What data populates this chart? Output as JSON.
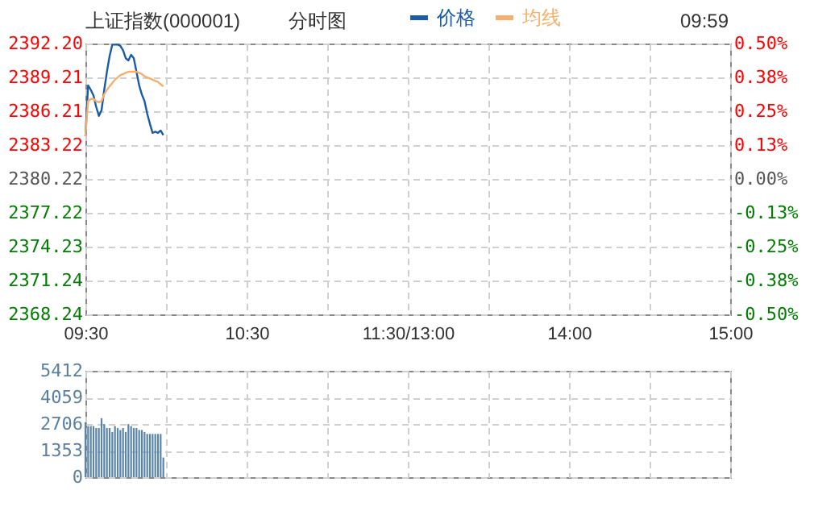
{
  "chart_data": [
    {
      "type": "line",
      "title": "上证指数(000001)",
      "annotations": [
        "分时图",
        "09:59"
      ],
      "legend": "top",
      "grid": true,
      "categories": [
        "09:30",
        null,
        null,
        null,
        null,
        null,
        null,
        null,
        null,
        null,
        null,
        null,
        null,
        null,
        null,
        null,
        null,
        null,
        null,
        null,
        null,
        null,
        null,
        null,
        null,
        null,
        null,
        null,
        null,
        null,
        null,
        null,
        null,
        null,
        null,
        null,
        null,
        null,
        null,
        null,
        null,
        null,
        null,
        null,
        null,
        null,
        null,
        null,
        null,
        null,
        null,
        null,
        null,
        null,
        null,
        null,
        null,
        null,
        null,
        null,
        "10:30",
        null,
        null,
        null,
        null,
        null,
        null,
        null,
        null,
        null,
        null,
        null,
        null,
        null,
        null,
        null,
        null,
        null,
        null,
        null,
        null,
        null,
        null,
        null,
        null,
        null,
        null,
        null,
        null,
        null,
        null,
        null,
        null,
        null,
        null,
        null,
        null,
        null,
        null,
        null,
        null,
        null,
        null,
        null,
        null,
        null,
        null,
        null,
        null,
        null,
        null,
        null,
        null,
        null,
        null,
        null,
        null,
        null,
        null,
        null,
        "11:30/13:00",
        null,
        null,
        null,
        null,
        null,
        null,
        null,
        null,
        null,
        null,
        null,
        null,
        null,
        null,
        null,
        null,
        null,
        null,
        null,
        null,
        null,
        null,
        null,
        null,
        null,
        null,
        null,
        null,
        null,
        null,
        null,
        null,
        null,
        null,
        null,
        null,
        null,
        null,
        null,
        null,
        null,
        null,
        null,
        null,
        null,
        null,
        null,
        null,
        null,
        null,
        null,
        null,
        null,
        null,
        null,
        null,
        null,
        null,
        null,
        "14:00",
        null,
        null,
        null,
        null,
        null,
        null,
        null,
        null,
        null,
        null,
        null,
        null,
        null,
        null,
        null,
        null,
        null,
        null,
        null,
        null,
        null,
        null,
        null,
        null,
        null,
        null,
        null,
        null,
        null,
        null,
        null,
        null,
        null,
        null,
        null,
        null,
        null,
        null,
        null,
        null,
        null,
        null,
        null,
        null,
        null,
        null,
        null,
        null,
        null,
        null,
        null,
        null,
        null,
        null,
        null,
        null,
        null,
        null,
        null,
        "15:00"
      ],
      "ylim": [
        2368.24,
        2392.2
      ],
      "yticks": [
        {
          "value": 2368.24,
          "label": "2368.24"
        },
        {
          "value": 2371.24,
          "label": "2371.24"
        },
        {
          "value": 2374.23,
          "label": "2374.23"
        },
        {
          "value": 2377.22,
          "label": "2377.22"
        },
        {
          "value": 2380.22,
          "label": "2380.22"
        },
        {
          "value": 2383.22,
          "label": "2383.22"
        },
        {
          "value": 2386.21,
          "label": "2386.21"
        },
        {
          "value": 2389.21,
          "label": "2389.21"
        },
        {
          "value": 2392.2,
          "label": "2392.20"
        }
      ],
      "y2lim": [
        -0.5,
        0.5
      ],
      "y2ticks": [
        {
          "value": -0.5,
          "label": "-0.50%"
        },
        {
          "value": -0.375,
          "label": "-0.38%"
        },
        {
          "value": -0.25,
          "label": "-0.25%"
        },
        {
          "value": -0.125,
          "label": "-0.13%"
        },
        {
          "value": 0,
          "label": "0.00%"
        },
        {
          "value": 0.125,
          "label": "0.13%"
        },
        {
          "value": 0.25,
          "label": "0.25%"
        },
        {
          "value": 0.375,
          "label": "0.38%"
        },
        {
          "value": 0.5,
          "label": "0.50%"
        }
      ],
      "series": [
        {
          "name": "价格",
          "color": "#1a5ca8",
          "values": [
            2384.0,
            2388.5,
            2388.1,
            2387.6,
            2386.6,
            2385.8,
            2386.3,
            2388.1,
            2389.7,
            2391.1,
            2392.1,
            2392.1,
            2392.1,
            2392.0,
            2391.6,
            2390.9,
            2390.7,
            2391.2,
            2390.9,
            2389.7,
            2388.5,
            2387.7,
            2387.1,
            2386.0,
            2385.1,
            2384.3,
            2384.4,
            2384.3,
            2384.5,
            2384.1,
            null,
            null,
            null,
            null,
            null,
            null,
            null,
            null,
            null,
            null,
            null,
            null,
            null,
            null,
            null,
            null,
            null,
            null,
            null,
            null,
            null,
            null,
            null,
            null,
            null,
            null,
            null,
            null,
            null,
            null,
            null,
            null,
            null,
            null,
            null,
            null,
            null,
            null,
            null,
            null,
            null,
            null,
            null,
            null,
            null,
            null,
            null,
            null,
            null,
            null,
            null,
            null,
            null,
            null,
            null,
            null,
            null,
            null,
            null,
            null,
            null,
            null,
            null,
            null,
            null,
            null,
            null,
            null,
            null,
            null,
            null,
            null,
            null,
            null,
            null,
            null,
            null,
            null,
            null,
            null,
            null,
            null,
            null,
            null,
            null,
            null,
            null,
            null,
            null,
            null,
            null,
            null,
            null,
            null,
            null,
            null,
            null,
            null,
            null,
            null,
            null,
            null,
            null,
            null,
            null,
            null,
            null,
            null,
            null,
            null,
            null,
            null,
            null,
            null,
            null,
            null,
            null,
            null,
            null,
            null,
            null,
            null,
            null,
            null,
            null,
            null,
            null,
            null,
            null,
            null,
            null,
            null,
            null,
            null,
            null,
            null,
            null,
            null,
            null,
            null,
            null,
            null,
            null,
            null,
            null,
            null,
            null,
            null,
            null,
            null,
            null,
            null,
            null,
            null,
            null,
            null,
            null,
            null,
            null,
            null,
            null,
            null,
            null,
            null,
            null,
            null,
            null,
            null,
            null,
            null,
            null,
            null,
            null,
            null,
            null,
            null,
            null,
            null,
            null,
            null,
            null,
            null,
            null,
            null,
            null,
            null,
            null,
            null,
            null,
            null,
            null,
            null,
            null,
            null,
            null,
            null,
            null,
            null,
            null,
            null,
            null,
            null,
            null,
            null,
            null,
            null,
            null,
            null,
            null,
            null,
            null
          ]
        },
        {
          "name": "均线",
          "color": "#f5b06b",
          "values": [
            2384.0,
            2387.1,
            2387.3,
            2387.3,
            2387.1,
            2387.0,
            2387.1,
            2387.7,
            2388.1,
            2388.4,
            2388.7,
            2389.0,
            2389.2,
            2389.4,
            2389.5,
            2389.6,
            2389.7,
            2389.7,
            2389.7,
            2389.7,
            2389.6,
            2389.5,
            2389.3,
            2389.2,
            2389.1,
            2389.0,
            2388.9,
            2388.8,
            2388.6,
            2388.4,
            null,
            null,
            null,
            null,
            null,
            null,
            null,
            null,
            null,
            null,
            null,
            null,
            null,
            null,
            null,
            null,
            null,
            null,
            null,
            null,
            null,
            null,
            null,
            null,
            null,
            null,
            null,
            null,
            null,
            null,
            null,
            null,
            null,
            null,
            null,
            null,
            null,
            null,
            null,
            null,
            null,
            null,
            null,
            null,
            null,
            null,
            null,
            null,
            null,
            null,
            null,
            null,
            null,
            null,
            null,
            null,
            null,
            null,
            null,
            null,
            null,
            null,
            null,
            null,
            null,
            null,
            null,
            null,
            null,
            null,
            null,
            null,
            null,
            null,
            null,
            null,
            null,
            null,
            null,
            null,
            null,
            null,
            null,
            null,
            null,
            null,
            null,
            null,
            null,
            null,
            null,
            null,
            null,
            null,
            null,
            null,
            null,
            null,
            null,
            null,
            null,
            null,
            null,
            null,
            null,
            null,
            null,
            null,
            null,
            null,
            null,
            null,
            null,
            null,
            null,
            null,
            null,
            null,
            null,
            null,
            null,
            null,
            null,
            null,
            null,
            null,
            null,
            null,
            null,
            null,
            null,
            null,
            null,
            null,
            null,
            null,
            null,
            null,
            null,
            null,
            null,
            null,
            null,
            null,
            null,
            null,
            null,
            null,
            null,
            null,
            null,
            null,
            null,
            null,
            null,
            null,
            null,
            null,
            null,
            null,
            null,
            null,
            null,
            null,
            null,
            null,
            null,
            null,
            null,
            null,
            null,
            null,
            null,
            null,
            null,
            null,
            null,
            null,
            null,
            null,
            null,
            null,
            null,
            null,
            null,
            null,
            null,
            null,
            null,
            null,
            null,
            null,
            null,
            null,
            null,
            null,
            null,
            null,
            null,
            null,
            null,
            null,
            null,
            null,
            null,
            null,
            null,
            null,
            null,
            null,
            null
          ]
        }
      ]
    },
    {
      "type": "bar",
      "grid": true,
      "tick_labels": "y",
      "color": "#5a84a8",
      "categories": [
        null,
        null,
        null,
        null,
        null,
        null,
        null,
        null,
        null,
        null,
        null,
        null,
        null,
        null,
        null,
        null,
        null,
        null,
        null,
        null,
        null,
        null,
        null,
        null,
        null,
        null,
        null,
        null,
        null,
        null,
        null,
        null,
        null,
        null,
        null,
        null,
        null,
        null,
        null,
        null,
        null,
        null,
        null,
        null,
        null,
        null,
        null,
        null,
        null,
        null,
        null,
        null,
        null,
        null,
        null,
        null,
        null,
        null,
        null,
        null,
        null,
        null,
        null,
        null,
        null,
        null,
        null,
        null,
        null,
        null,
        null,
        null,
        null,
        null,
        null,
        null,
        null,
        null,
        null,
        null,
        null,
        null,
        null,
        null,
        null,
        null,
        null,
        null,
        null,
        null,
        null,
        null,
        null,
        null,
        null,
        null,
        null,
        null,
        null,
        null,
        null,
        null,
        null,
        null,
        null,
        null,
        null,
        null,
        null,
        null,
        null,
        null,
        null,
        null,
        null,
        null,
        null,
        null,
        null,
        null,
        null,
        null,
        null,
        null,
        null,
        null,
        null,
        null,
        null,
        null,
        null,
        null,
        null,
        null,
        null,
        null,
        null,
        null,
        null,
        null,
        null,
        null,
        null,
        null,
        null,
        null,
        null,
        null,
        null,
        null,
        null,
        null,
        null,
        null,
        null,
        null,
        null,
        null,
        null,
        null,
        null,
        null,
        null,
        null,
        null,
        null,
        null,
        null,
        null,
        null,
        null,
        null,
        null,
        null,
        null,
        null,
        null,
        null,
        null,
        null,
        null,
        null,
        null,
        null,
        null,
        null,
        null,
        null,
        null,
        null,
        null,
        null,
        null,
        null,
        null,
        null,
        null,
        null,
        null,
        null,
        null,
        null,
        null,
        null,
        null,
        null,
        null,
        null,
        null,
        null,
        null,
        null,
        null,
        null,
        null,
        null,
        null,
        null,
        null,
        null,
        null,
        null,
        null,
        null,
        null,
        null,
        null,
        null,
        null,
        null,
        null,
        null,
        null,
        null,
        null,
        null,
        null,
        null,
        null,
        null,
        null
      ],
      "ylim": [
        0,
        5412
      ],
      "yticks": [
        0,
        1353,
        2706,
        4059,
        5412
      ],
      "values": [
        2800,
        2600,
        2600,
        2600,
        2500,
        2500,
        3000,
        2700,
        2500,
        2500,
        2300,
        2600,
        2500,
        2400,
        2500,
        2300,
        2700,
        2600,
        2500,
        2500,
        2400,
        2400,
        2300,
        2200,
        2200,
        2200,
        2200,
        2200,
        2200,
        1000,
        null,
        null,
        null,
        null,
        null,
        null,
        null,
        null,
        null,
        null,
        null,
        null,
        null,
        null,
        null,
        null,
        null,
        null,
        null,
        null,
        null,
        null,
        null,
        null,
        null,
        null,
        null,
        null,
        null,
        null,
        null,
        null,
        null,
        null,
        null,
        null,
        null,
        null,
        null,
        null,
        null,
        null,
        null,
        null,
        null,
        null,
        null,
        null,
        null,
        null,
        null,
        null,
        null,
        null,
        null,
        null,
        null,
        null,
        null,
        null,
        null,
        null,
        null,
        null,
        null,
        null,
        null,
        null,
        null,
        null,
        null,
        null,
        null,
        null,
        null,
        null,
        null,
        null,
        null,
        null,
        null,
        null,
        null,
        null,
        null,
        null,
        null,
        null,
        null,
        null,
        null,
        null,
        null,
        null,
        null,
        null,
        null,
        null,
        null,
        null,
        null,
        null,
        null,
        null,
        null,
        null,
        null,
        null,
        null,
        null,
        null,
        null,
        null,
        null,
        null,
        null,
        null,
        null,
        null,
        null,
        null,
        null,
        null,
        null,
        null,
        null,
        null,
        null,
        null,
        null,
        null,
        null,
        null,
        null,
        null,
        null,
        null,
        null,
        null,
        null,
        null,
        null,
        null,
        null,
        null,
        null,
        null,
        null,
        null,
        null,
        null,
        null,
        null,
        null,
        null,
        null,
        null,
        null,
        null,
        null,
        null,
        null,
        null,
        null,
        null,
        null,
        null,
        null,
        null,
        null,
        null,
        null,
        null,
        null,
        null,
        null,
        null,
        null,
        null,
        null,
        null,
        null,
        null,
        null,
        null,
        null,
        null,
        null,
        null,
        null,
        null,
        null,
        null,
        null,
        null,
        null,
        null,
        null,
        null,
        null,
        null,
        null,
        null,
        null,
        null,
        null,
        null,
        null,
        null,
        null,
        null
      ]
    }
  ]
}
